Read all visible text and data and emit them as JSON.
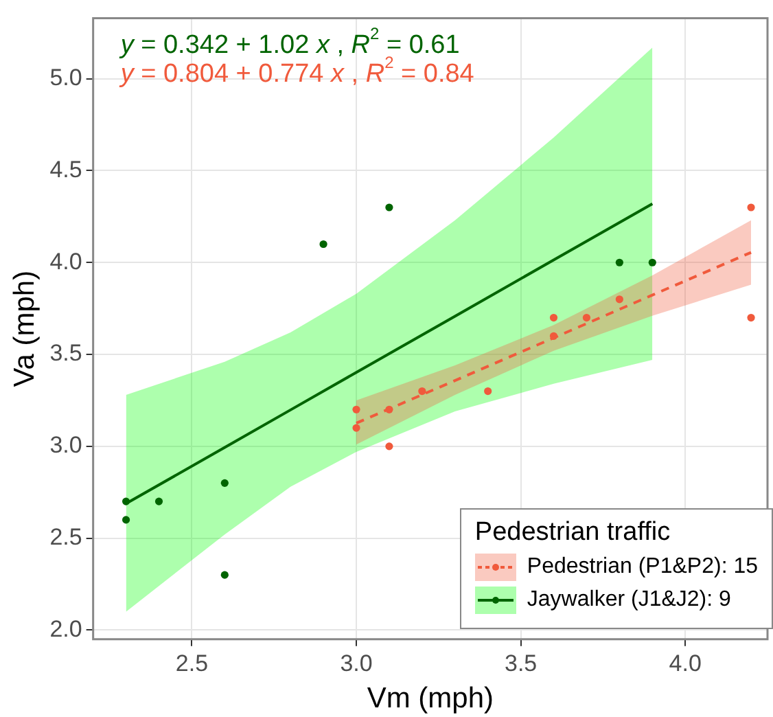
{
  "chart_data": {
    "type": "scatter",
    "xlabel": "Vm (mph)",
    "ylabel": "Va (mph)",
    "legend_title": "Pedestrian traffic",
    "annotations": [
      "y = 0.342 + 1.02 x , R$^{2}$ = 0.61",
      "y = 0.804 + 0.774 x , R$^{2}$ = 0.84"
    ],
    "xlim": [
      2.2,
      4.25
    ],
    "xticks": [
      2.5,
      {
        "value": 3,
        "label": "3.0"
      },
      3.5,
      {
        "value": 4,
        "label": "4.0"
      }
    ],
    "ylim": [
      1.95,
      5.33
    ],
    "yticks": [
      {
        "value": 2,
        "label": "2.0"
      },
      2.5,
      {
        "value": 3,
        "label": "3.0"
      },
      3.5,
      {
        "value": 4,
        "label": "4.0"
      },
      4.5,
      {
        "value": 5,
        "label": "5.0"
      }
    ],
    "grid": true,
    "legend": "bottom right",
    "series": [
      {
        "type": "scatter",
        "color": "#f05a3c",
        "marker": "circle",
        "x": [
          3.0,
          3.0,
          3.1,
          3.1,
          3.2,
          3.4,
          3.6,
          3.6,
          3.7,
          3.8,
          4.2,
          4.2
        ],
        "values": [
          3.2,
          3.1,
          3.2,
          3.0,
          3.3,
          3.3,
          3.7,
          3.6,
          3.7,
          3.8,
          4.3,
          3.7
        ]
      },
      {
        "type": "line",
        "name": "Pedestrian (P1&P2): 15",
        "color": "#f05a3c",
        "line_style": "dashed",
        "x": [
          3.0,
          3.3,
          3.6,
          3.9,
          4.2
        ],
        "values": [
          3.126,
          3.358,
          3.59,
          3.823,
          4.055
        ],
        "lower": [
          3.01,
          3.28,
          3.52,
          3.71,
          3.88
        ],
        "upper": [
          3.25,
          3.44,
          3.66,
          3.93,
          4.23
        ]
      },
      {
        "type": "scatter",
        "color": "#006400",
        "marker": "circle",
        "x": [
          2.3,
          2.3,
          2.4,
          2.6,
          2.6,
          2.9,
          3.1,
          3.8,
          3.9
        ],
        "values": [
          2.7,
          2.6,
          2.7,
          2.8,
          2.3,
          4.1,
          4.3,
          4.0,
          4.0
        ]
      },
      {
        "type": "line",
        "name": "Jaywalker (J1&J2): 9",
        "color": "#006400",
        "line_style": "solid",
        "x": [
          2.3,
          2.6,
          2.8,
          3.0,
          3.3,
          3.6,
          3.9
        ],
        "values": [
          2.688,
          2.994,
          3.198,
          3.402,
          3.708,
          4.014,
          4.32
        ],
        "lower": [
          2.1,
          2.52,
          2.78,
          2.97,
          3.19,
          3.34,
          3.47
        ],
        "upper": [
          3.28,
          3.46,
          3.62,
          3.83,
          4.23,
          4.68,
          5.17
        ]
      }
    ]
  }
}
